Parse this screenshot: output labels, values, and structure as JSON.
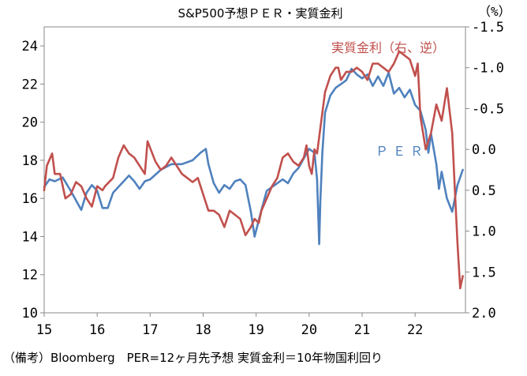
{
  "chart_data": {
    "type": "line",
    "title": "S&P500予想ＰＥＲ・実質金利",
    "right_unit": "（%）",
    "note": "（備考）Bloomberg　PER=12ヶ月先予想 実質金利＝10年物国利回り",
    "x_ticks": [
      "15",
      "16",
      "17",
      "18",
      "19",
      "20",
      "21",
      "22"
    ],
    "x_tick_values": [
      2015,
      2016,
      2017,
      2018,
      2019,
      2020,
      2021,
      2022
    ],
    "xlim": [
      2015,
      2022.95
    ],
    "y_left": {
      "ylim": [
        10,
        25
      ],
      "ticks": [
        "10",
        "12",
        "14",
        "16",
        "18",
        "20",
        "22",
        "24"
      ]
    },
    "y_right": {
      "ylim": [
        2.0,
        -1.5
      ],
      "inverted": true,
      "ticks": [
        "-1.5",
        "-1.0",
        "-0.5",
        "0.0",
        "0.5",
        "1.0",
        "1.5",
        "2.0"
      ]
    },
    "series": [
      {
        "name": "ＰＥＲ",
        "axis": "left",
        "color": "#4f81bd",
        "x": [
          2015.0,
          2015.1,
          2015.2,
          2015.35,
          2015.5,
          2015.6,
          2015.7,
          2015.8,
          2015.9,
          2016.0,
          2016.1,
          2016.2,
          2016.3,
          2016.4,
          2016.5,
          2016.6,
          2016.7,
          2016.8,
          2016.9,
          2017.0,
          2017.2,
          2017.4,
          2017.6,
          2017.8,
          2017.95,
          2018.05,
          2018.1,
          2018.2,
          2018.3,
          2018.4,
          2018.5,
          2018.6,
          2018.7,
          2018.8,
          2018.9,
          2018.97,
          2019.1,
          2019.2,
          2019.35,
          2019.5,
          2019.6,
          2019.7,
          2019.8,
          2019.9,
          2020.0,
          2020.1,
          2020.15,
          2020.19,
          2020.21,
          2020.25,
          2020.3,
          2020.4,
          2020.5,
          2020.6,
          2020.7,
          2020.8,
          2020.9,
          2021.0,
          2021.1,
          2021.2,
          2021.3,
          2021.4,
          2021.5,
          2021.6,
          2021.7,
          2021.8,
          2021.9,
          2022.0,
          2022.1,
          2022.2,
          2022.25,
          2022.3,
          2022.4,
          2022.45,
          2022.5,
          2022.6,
          2022.7,
          2022.8,
          2022.9
        ],
        "y": [
          16.6,
          17.0,
          16.9,
          17.1,
          16.4,
          15.9,
          15.4,
          16.3,
          16.7,
          16.4,
          15.5,
          15.5,
          16.3,
          16.6,
          16.9,
          17.2,
          16.9,
          16.5,
          16.9,
          17.0,
          17.5,
          17.8,
          17.8,
          18.0,
          18.4,
          18.6,
          17.8,
          16.8,
          16.3,
          16.7,
          16.5,
          16.9,
          17.0,
          16.7,
          15.3,
          14.0,
          15.4,
          16.4,
          16.7,
          17.0,
          16.8,
          17.3,
          17.6,
          18.1,
          18.6,
          18.4,
          17.0,
          13.6,
          15.8,
          18.4,
          20.5,
          21.4,
          21.8,
          22.0,
          22.2,
          22.8,
          22.5,
          22.3,
          22.5,
          21.9,
          22.4,
          21.9,
          22.6,
          21.5,
          21.8,
          21.3,
          21.7,
          20.9,
          20.6,
          19.6,
          18.4,
          19.4,
          17.8,
          16.5,
          17.4,
          16.0,
          15.3,
          16.7,
          17.5
        ]
      },
      {
        "name": "実質金利（右、逆）",
        "axis": "right",
        "color": "#c0504d",
        "x": [
          2015.0,
          2015.05,
          2015.15,
          2015.2,
          2015.3,
          2015.4,
          2015.5,
          2015.6,
          2015.7,
          2015.8,
          2015.9,
          2016.0,
          2016.1,
          2016.15,
          2016.3,
          2016.4,
          2016.5,
          2016.6,
          2016.7,
          2016.8,
          2016.9,
          2016.95,
          2017.1,
          2017.2,
          2017.3,
          2017.4,
          2017.5,
          2017.6,
          2017.7,
          2017.8,
          2017.9,
          2018.0,
          2018.1,
          2018.2,
          2018.3,
          2018.4,
          2018.5,
          2018.6,
          2018.7,
          2018.8,
          2018.9,
          2018.97,
          2019.05,
          2019.1,
          2019.2,
          2019.3,
          2019.4,
          2019.5,
          2019.6,
          2019.7,
          2019.8,
          2019.9,
          2019.95,
          2020.0,
          2020.05,
          2020.1,
          2020.15,
          2020.25,
          2020.3,
          2020.4,
          2020.5,
          2020.55,
          2020.6,
          2020.7,
          2020.8,
          2020.9,
          2021.0,
          2021.1,
          2021.2,
          2021.3,
          2021.4,
          2021.5,
          2021.6,
          2021.7,
          2021.8,
          2021.9,
          2022.0,
          2022.05,
          2022.1,
          2022.2,
          2022.3,
          2022.4,
          2022.5,
          2022.6,
          2022.7,
          2022.75,
          2022.8,
          2022.85,
          2022.9
        ],
        "y": [
          0.5,
          0.2,
          0.05,
          0.3,
          0.3,
          0.6,
          0.55,
          0.4,
          0.45,
          0.6,
          0.7,
          0.45,
          0.5,
          0.45,
          0.35,
          0.1,
          -0.05,
          0.05,
          0.1,
          0.2,
          0.3,
          -0.1,
          0.15,
          0.25,
          0.2,
          0.1,
          0.2,
          0.3,
          0.35,
          0.4,
          0.35,
          0.55,
          0.75,
          0.75,
          0.8,
          0.95,
          0.75,
          0.8,
          0.85,
          1.05,
          0.95,
          0.85,
          0.9,
          0.75,
          0.6,
          0.45,
          0.35,
          0.1,
          0.05,
          0.15,
          0.2,
          0.1,
          -0.05,
          0.2,
          0.3,
          0.0,
          0.05,
          -0.45,
          -0.7,
          -0.9,
          -1.0,
          -1.0,
          -0.85,
          -0.95,
          -0.95,
          -1.0,
          -0.95,
          -0.85,
          -1.05,
          -1.05,
          -1.0,
          -0.95,
          -1.05,
          -1.2,
          -1.15,
          -1.1,
          -0.9,
          -1.05,
          -0.4,
          0.0,
          -0.2,
          -0.55,
          -0.35,
          -0.75,
          -0.2,
          0.5,
          1.15,
          1.7,
          1.55
        ]
      }
    ],
    "labels": {
      "red": "実質金利（右、逆）",
      "blue": "ＰＥＲ"
    },
    "grid": false
  }
}
